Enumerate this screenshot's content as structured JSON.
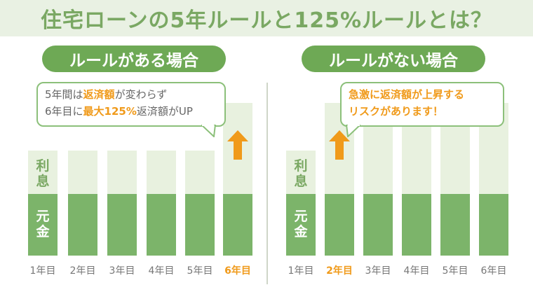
{
  "title": "住宅ローンの5年ルールと125%ルールとは？",
  "left_panel": {
    "heading": "ルールがある場合",
    "bubble_line1_a": "5年間は",
    "bubble_line1_b": "返済額",
    "bubble_line1_c": "が変わらず",
    "bubble_line2_a": "6年目に",
    "bubble_line2_b": "最大125%",
    "bubble_line2_c": "返済額がUP",
    "years": [
      "1年目",
      "2年目",
      "3年目",
      "4年目",
      "5年目",
      "6年目"
    ],
    "highlight_year_index": 5
  },
  "right_panel": {
    "heading": "ルールがない場合",
    "bubble_line1": "急激に返済額が上昇する",
    "bubble_line2": "リスクがあります！",
    "years": [
      "1年目",
      "2年目",
      "3年目",
      "4年目",
      "5年目",
      "6年目"
    ],
    "highlight_year_index": 1
  },
  "labels": {
    "interest": [
      "利",
      "息"
    ],
    "principal": [
      "元",
      "金"
    ]
  },
  "colors": {
    "title_band": "#e9f1e3",
    "title_text": "#7aa863",
    "pill": "#6ea955",
    "bar_light": "#e8f1df",
    "bar_dark": "#7cb46a",
    "accent_orange": "#f09a1a"
  },
  "icons": [
    "up-arrow-icon"
  ]
}
